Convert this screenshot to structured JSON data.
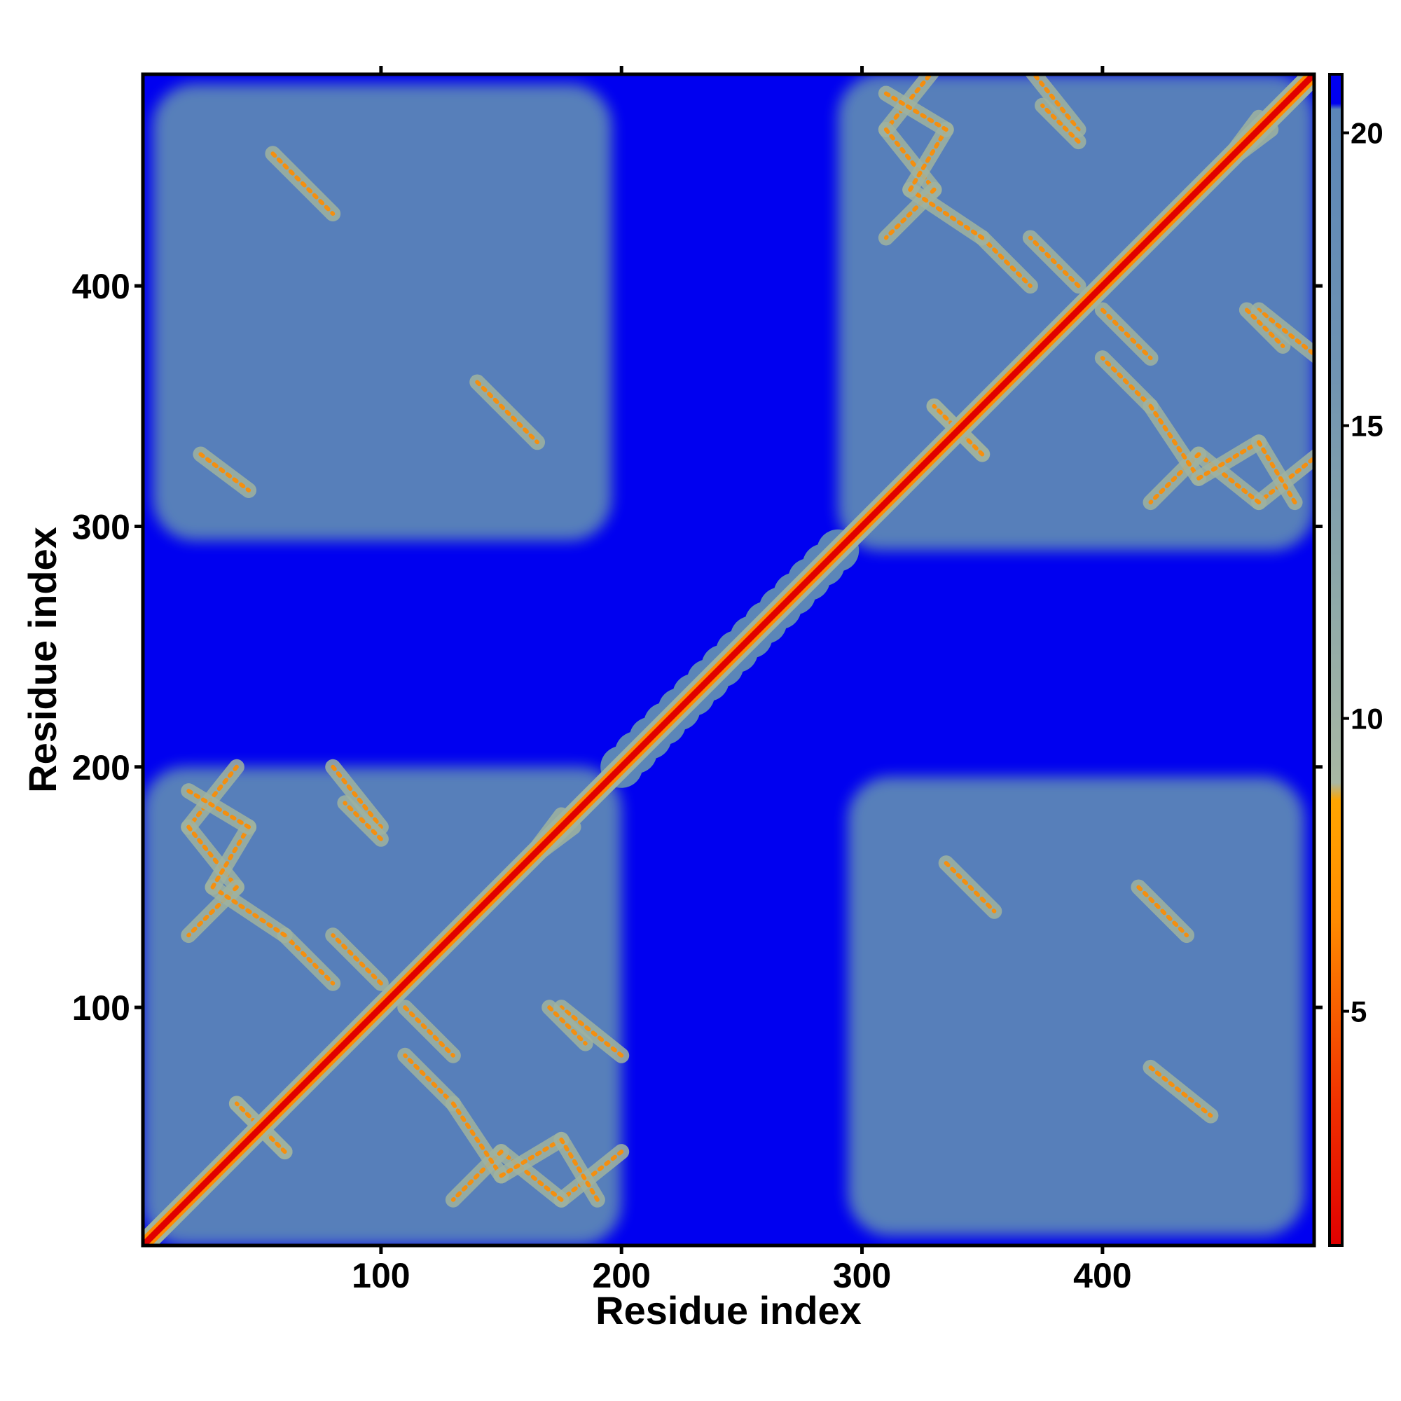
{
  "chart_data": {
    "type": "heatmap",
    "title": "",
    "xlabel": "Residue index",
    "ylabel": "Residue index",
    "xlim": [
      1,
      488
    ],
    "ylim": [
      1,
      488
    ],
    "x_ticks": [
      100,
      200,
      300,
      400
    ],
    "y_ticks": [
      100,
      200,
      300,
      400
    ],
    "x_tick_labels": [
      "100",
      "200",
      "300",
      "400"
    ],
    "y_tick_labels": [
      "100",
      "200",
      "300",
      "400"
    ],
    "colorbar": {
      "ticks": [
        5,
        10,
        15,
        20
      ],
      "tick_labels": [
        "5",
        "10",
        "15",
        "20"
      ],
      "range": [
        1,
        21
      ],
      "colors": {
        "near": "#e00000",
        "mid_low": "#ff8c00",
        "mid": "#9fb3a0",
        "far": "#5b86b8",
        "cutoff": "#0000f0"
      }
    },
    "domains": [
      {
        "start": 1,
        "end": 200
      },
      {
        "start": 290,
        "end": 488
      }
    ],
    "diagonal_linker": {
      "start": 200,
      "end": 290
    }
  }
}
